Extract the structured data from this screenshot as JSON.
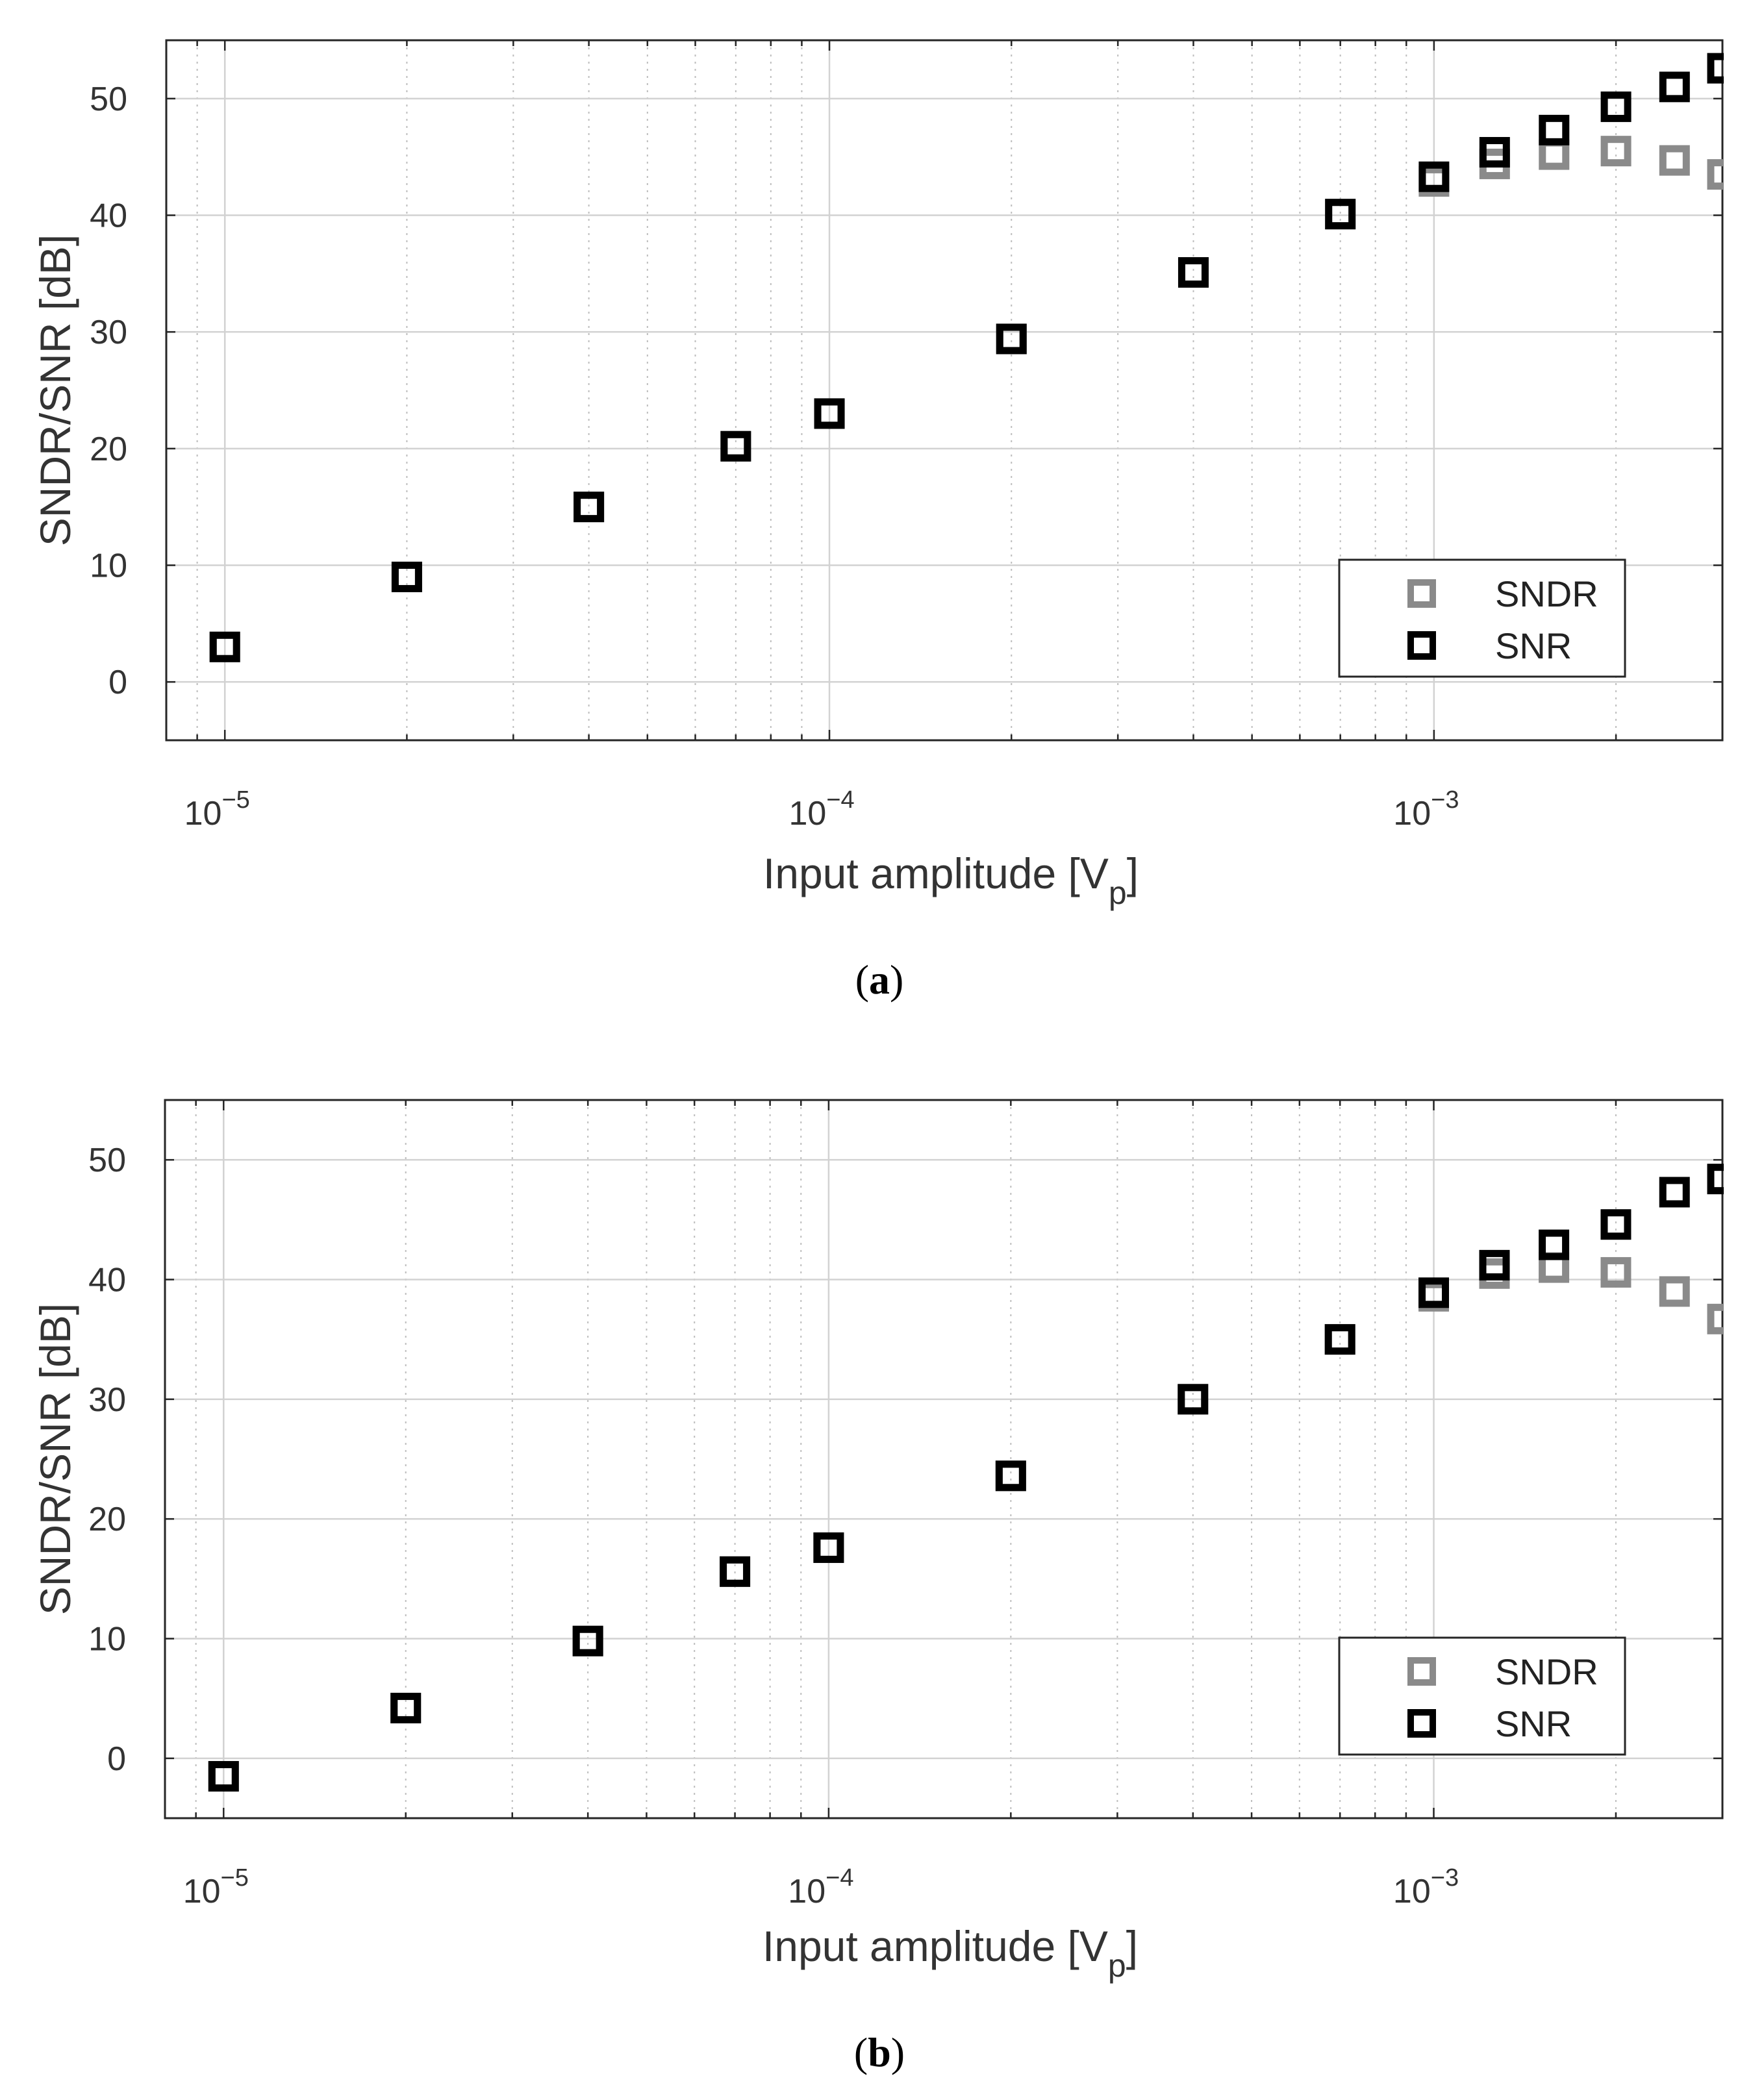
{
  "chart_data": [
    {
      "type": "scatter",
      "panel": "a",
      "caption_letter": "a",
      "xscale": "log",
      "xlim": [
        8e-06,
        0.003
      ],
      "ylim": [
        -5,
        55
      ],
      "grid": true,
      "minor_grid": true,
      "xlabel": "Input amplitude [V",
      "xlabel_sub": "p",
      "xlabel_end": "]",
      "ylabel": "SNDR/SNR [dB]",
      "y_ticks": [
        "0",
        "10",
        "20",
        "30",
        "40",
        "50"
      ],
      "x_ticks": [
        {
          "base": "10",
          "exp": "−5",
          "value": 1e-05
        },
        {
          "base": "10",
          "exp": "−4",
          "value": 0.0001
        },
        {
          "base": "10",
          "exp": "−3",
          "value": 0.001
        }
      ],
      "legend_position": "lower-right",
      "series": [
        {
          "name": "SNDR",
          "color": "#8a8a8a",
          "x": [
            1e-05,
            2e-05,
            4e-05,
            7e-05,
            0.0001,
            0.0002,
            0.0004,
            0.0007,
            0.001,
            0.00126,
            0.00158,
            0.002,
            0.0025,
            0.003
          ],
          "y": [
            3,
            9,
            15,
            20.2,
            23,
            29.4,
            35.1,
            40.1,
            42.9,
            44.4,
            45.2,
            45.5,
            44.7,
            43.5
          ]
        },
        {
          "name": "SNR",
          "color": "#000000",
          "x": [
            1e-05,
            2e-05,
            4e-05,
            7e-05,
            0.0001,
            0.0002,
            0.0004,
            0.0007,
            0.001,
            0.00126,
            0.00158,
            0.002,
            0.0025,
            0.003
          ],
          "y": [
            3,
            9,
            15,
            20.2,
            23,
            29.4,
            35.1,
            40.1,
            43.3,
            45.4,
            47.3,
            49.3,
            51,
            52.6
          ]
        }
      ]
    },
    {
      "type": "scatter",
      "panel": "b",
      "caption_letter": "b",
      "xscale": "log",
      "xlim": [
        8e-06,
        0.003
      ],
      "ylim": [
        -5,
        55
      ],
      "grid": true,
      "minor_grid": true,
      "xlabel": "Input amplitude [V",
      "xlabel_sub": "p",
      "xlabel_end": "]",
      "ylabel": "SNDR/SNR [dB]",
      "y_ticks": [
        "0",
        "10",
        "20",
        "30",
        "40",
        "50"
      ],
      "x_ticks": [
        {
          "base": "10",
          "exp": "−5",
          "value": 1e-05
        },
        {
          "base": "10",
          "exp": "−4",
          "value": 0.0001
        },
        {
          "base": "10",
          "exp": "−3",
          "value": 0.001
        }
      ],
      "legend_position": "lower-right",
      "series": [
        {
          "name": "SNDR",
          "color": "#8a8a8a",
          "x": [
            1e-05,
            2e-05,
            4e-05,
            7e-05,
            0.0001,
            0.0002,
            0.0004,
            0.0007,
            0.001,
            0.00126,
            0.00158,
            0.002,
            0.0025,
            0.003
          ],
          "y": [
            -1.5,
            4.2,
            9.8,
            15.6,
            17.6,
            23.6,
            30,
            35,
            38.6,
            40.5,
            41,
            40.6,
            39,
            36.7
          ]
        },
        {
          "name": "SNR",
          "color": "#000000",
          "x": [
            1e-05,
            2e-05,
            4e-05,
            7e-05,
            0.0001,
            0.0002,
            0.0004,
            0.0007,
            0.001,
            0.00126,
            0.00158,
            0.002,
            0.0025,
            0.003
          ],
          "y": [
            -1.5,
            4.2,
            9.8,
            15.6,
            17.6,
            23.6,
            30,
            35,
            38.9,
            41.2,
            42.9,
            44.6,
            47.3,
            48.4
          ]
        }
      ]
    }
  ]
}
